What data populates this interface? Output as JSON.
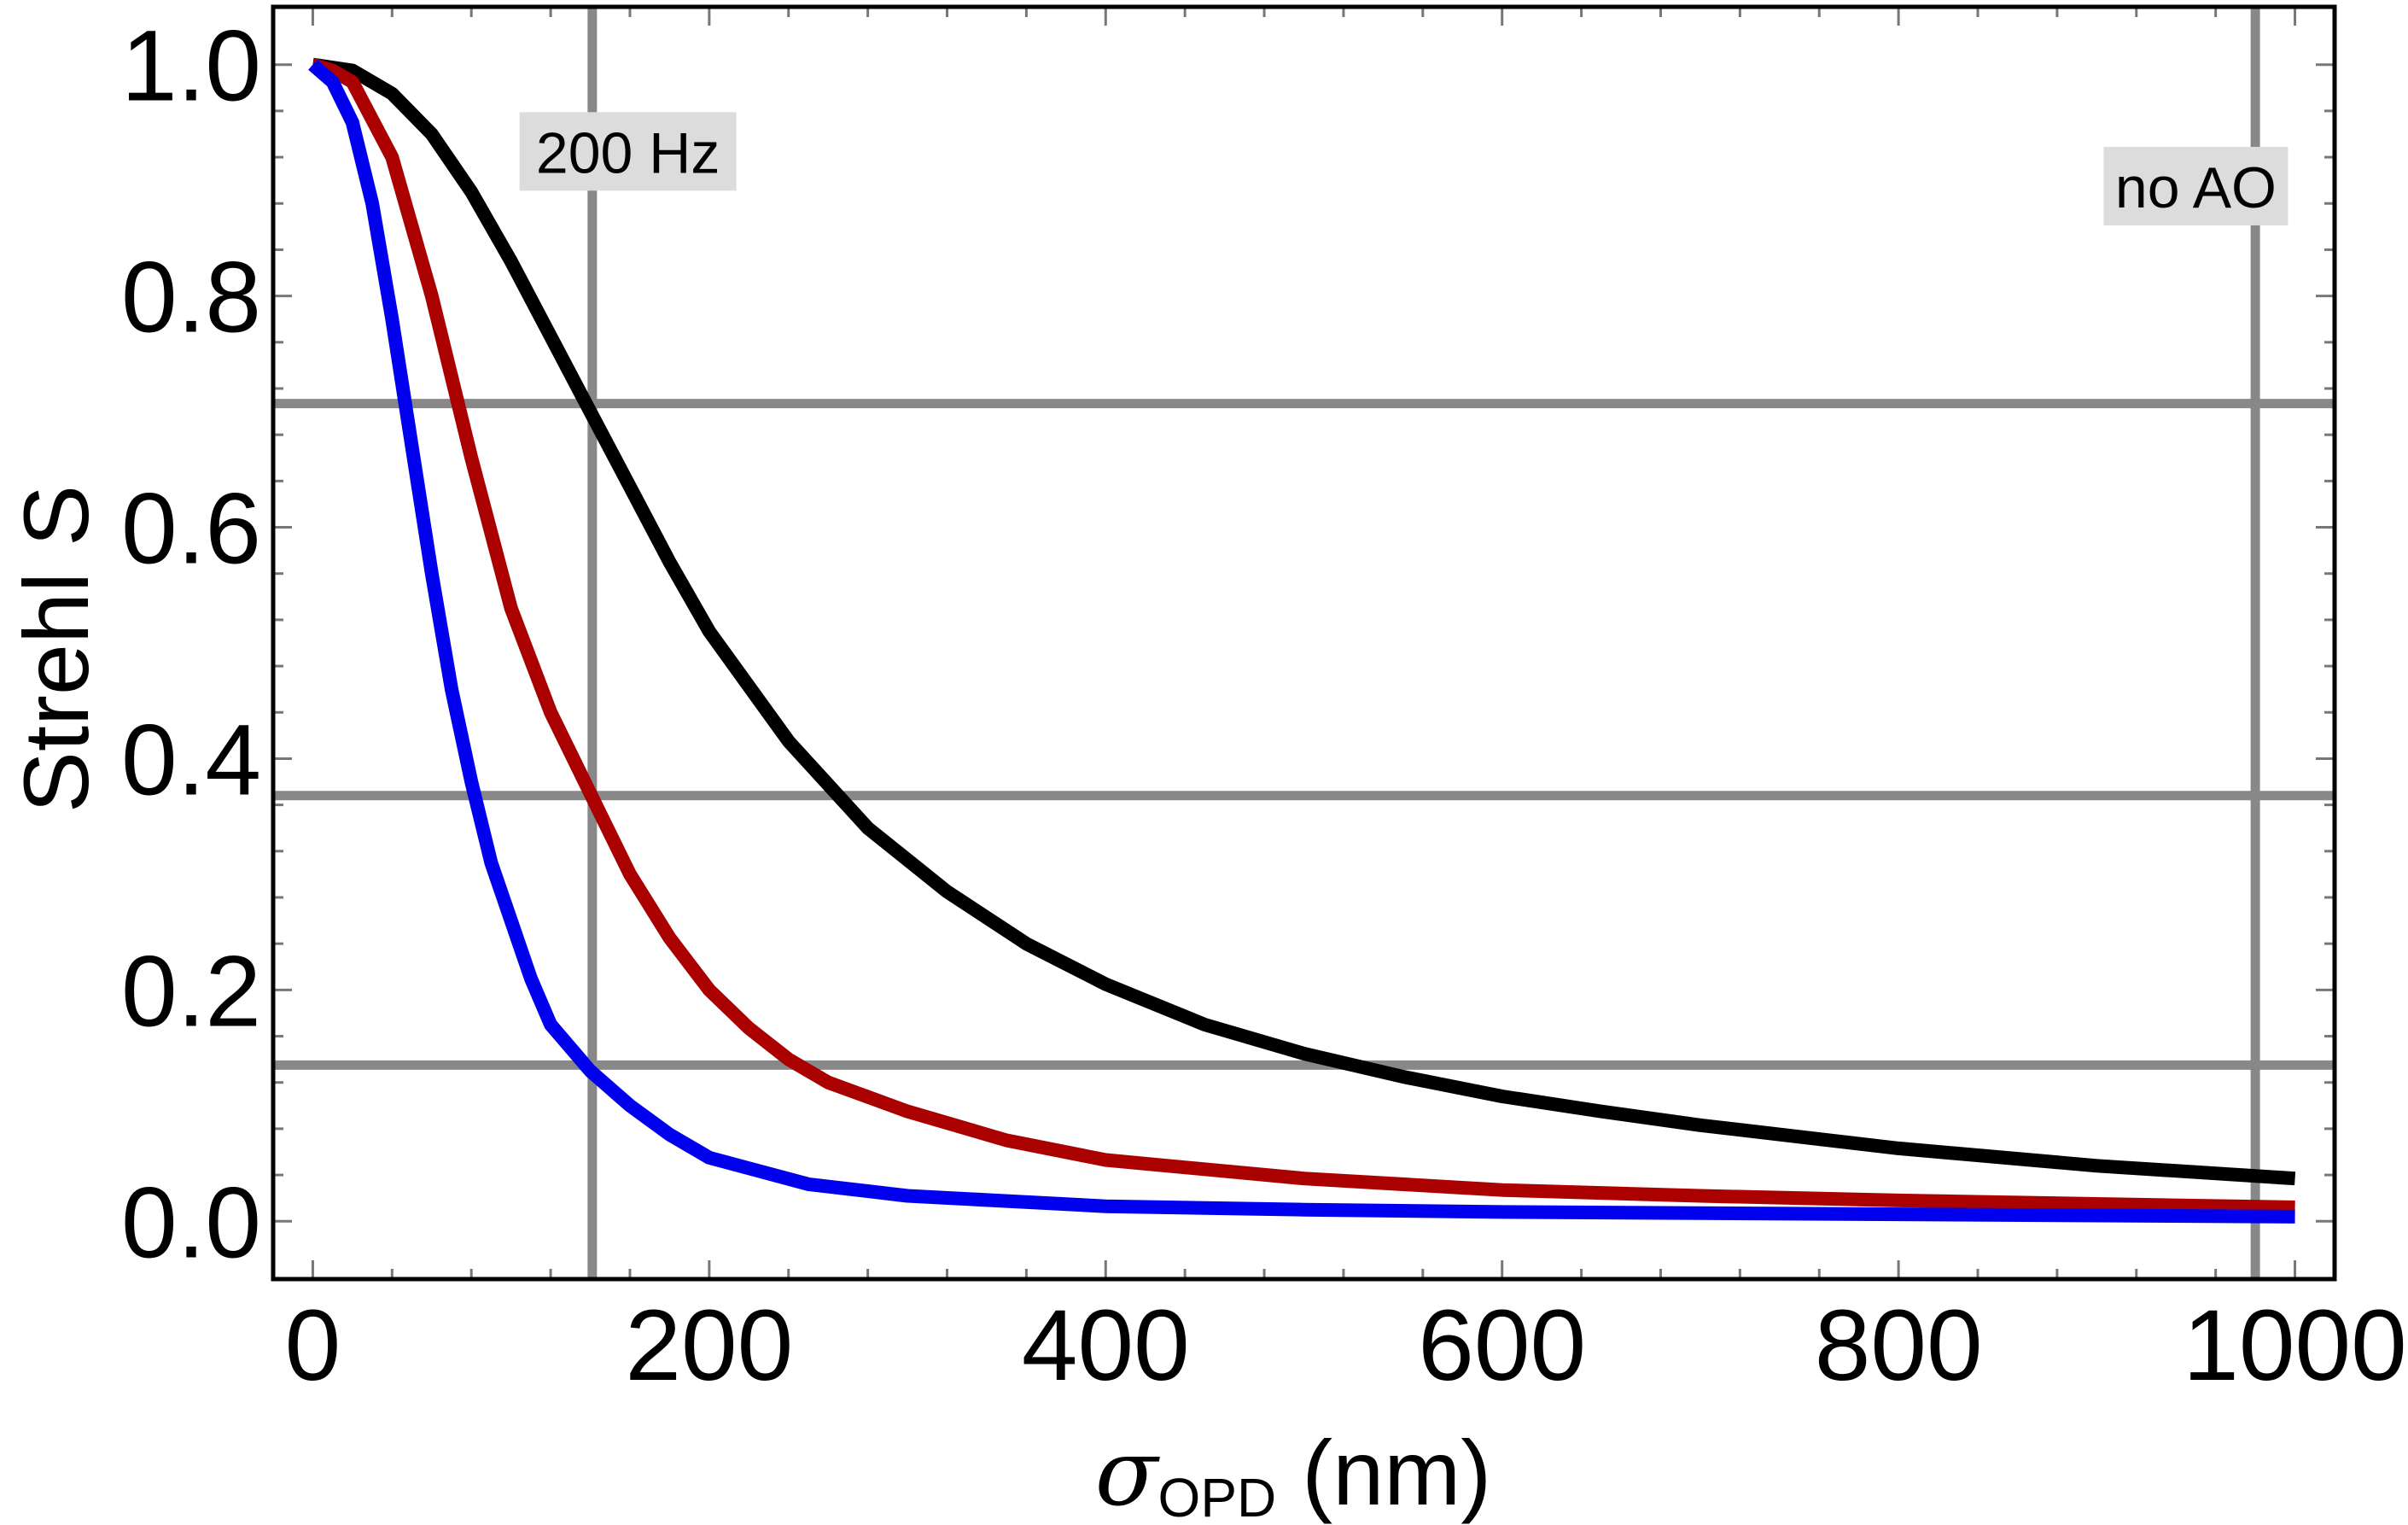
{
  "chart_data": {
    "type": "line",
    "title": "",
    "xlabel": {
      "symbol": "σ",
      "subscript": "OPD",
      "unit": " (nm)"
    },
    "ylabel": "Strehl S",
    "xlim": [
      -20,
      1020
    ],
    "ylim": [
      -0.05,
      1.05
    ],
    "x_ticks": [
      0,
      200,
      400,
      600,
      800,
      1000
    ],
    "x_tick_labels": [
      "0",
      "200",
      "400",
      "600",
      "800",
      "1000"
    ],
    "y_ticks": [
      0.0,
      0.2,
      0.4,
      0.6,
      0.8,
      1.0
    ],
    "y_tick_labels": [
      "0.0",
      "0.2",
      "0.4",
      "0.6",
      "0.8",
      "1.0"
    ],
    "reference_lines": {
      "vertical": [
        141,
        980
      ],
      "horizontal": [
        0.135,
        0.368,
        0.707
      ]
    },
    "annotations": [
      {
        "text": "200 Hz",
        "x": 159,
        "y": 0.925
      },
      {
        "text": "no AO",
        "x": 950,
        "y": 0.895
      }
    ],
    "series": [
      {
        "name": "black",
        "color": "#000000",
        "x": [
          0,
          20,
          40,
          60,
          80,
          100,
          120,
          140,
          160,
          180,
          200,
          240,
          280,
          320,
          360,
          400,
          450,
          500,
          550,
          600,
          650,
          700,
          800,
          900,
          1000
        ],
        "y": [
          1.0,
          0.995,
          0.975,
          0.94,
          0.89,
          0.83,
          0.765,
          0.7,
          0.635,
          0.57,
          0.51,
          0.415,
          0.34,
          0.285,
          0.24,
          0.205,
          0.17,
          0.145,
          0.125,
          0.108,
          0.095,
          0.083,
          0.063,
          0.048,
          0.037
        ]
      },
      {
        "name": "red",
        "color": "#aa0000",
        "x": [
          0,
          10,
          20,
          40,
          60,
          80,
          100,
          120,
          140,
          160,
          180,
          200,
          220,
          240,
          260,
          300,
          350,
          400,
          500,
          600,
          700,
          800,
          900,
          1000
        ],
        "y": [
          1.0,
          0.995,
          0.985,
          0.92,
          0.8,
          0.66,
          0.53,
          0.44,
          0.37,
          0.3,
          0.245,
          0.2,
          0.167,
          0.14,
          0.12,
          0.095,
          0.07,
          0.053,
          0.037,
          0.027,
          0.022,
          0.018,
          0.015,
          0.012
        ]
      },
      {
        "name": "blue",
        "color": "#0000ee",
        "x": [
          0,
          10,
          20,
          30,
          40,
          50,
          60,
          70,
          80,
          90,
          100,
          110,
          120,
          130,
          140,
          160,
          180,
          200,
          250,
          300,
          400,
          500,
          600,
          700,
          800,
          900,
          1000
        ],
        "y": [
          1.0,
          0.985,
          0.95,
          0.88,
          0.78,
          0.67,
          0.56,
          0.46,
          0.38,
          0.31,
          0.26,
          0.21,
          0.17,
          0.15,
          0.13,
          0.1,
          0.075,
          0.055,
          0.032,
          0.022,
          0.013,
          0.01,
          0.008,
          0.007,
          0.006,
          0.005,
          0.004
        ]
      }
    ]
  }
}
